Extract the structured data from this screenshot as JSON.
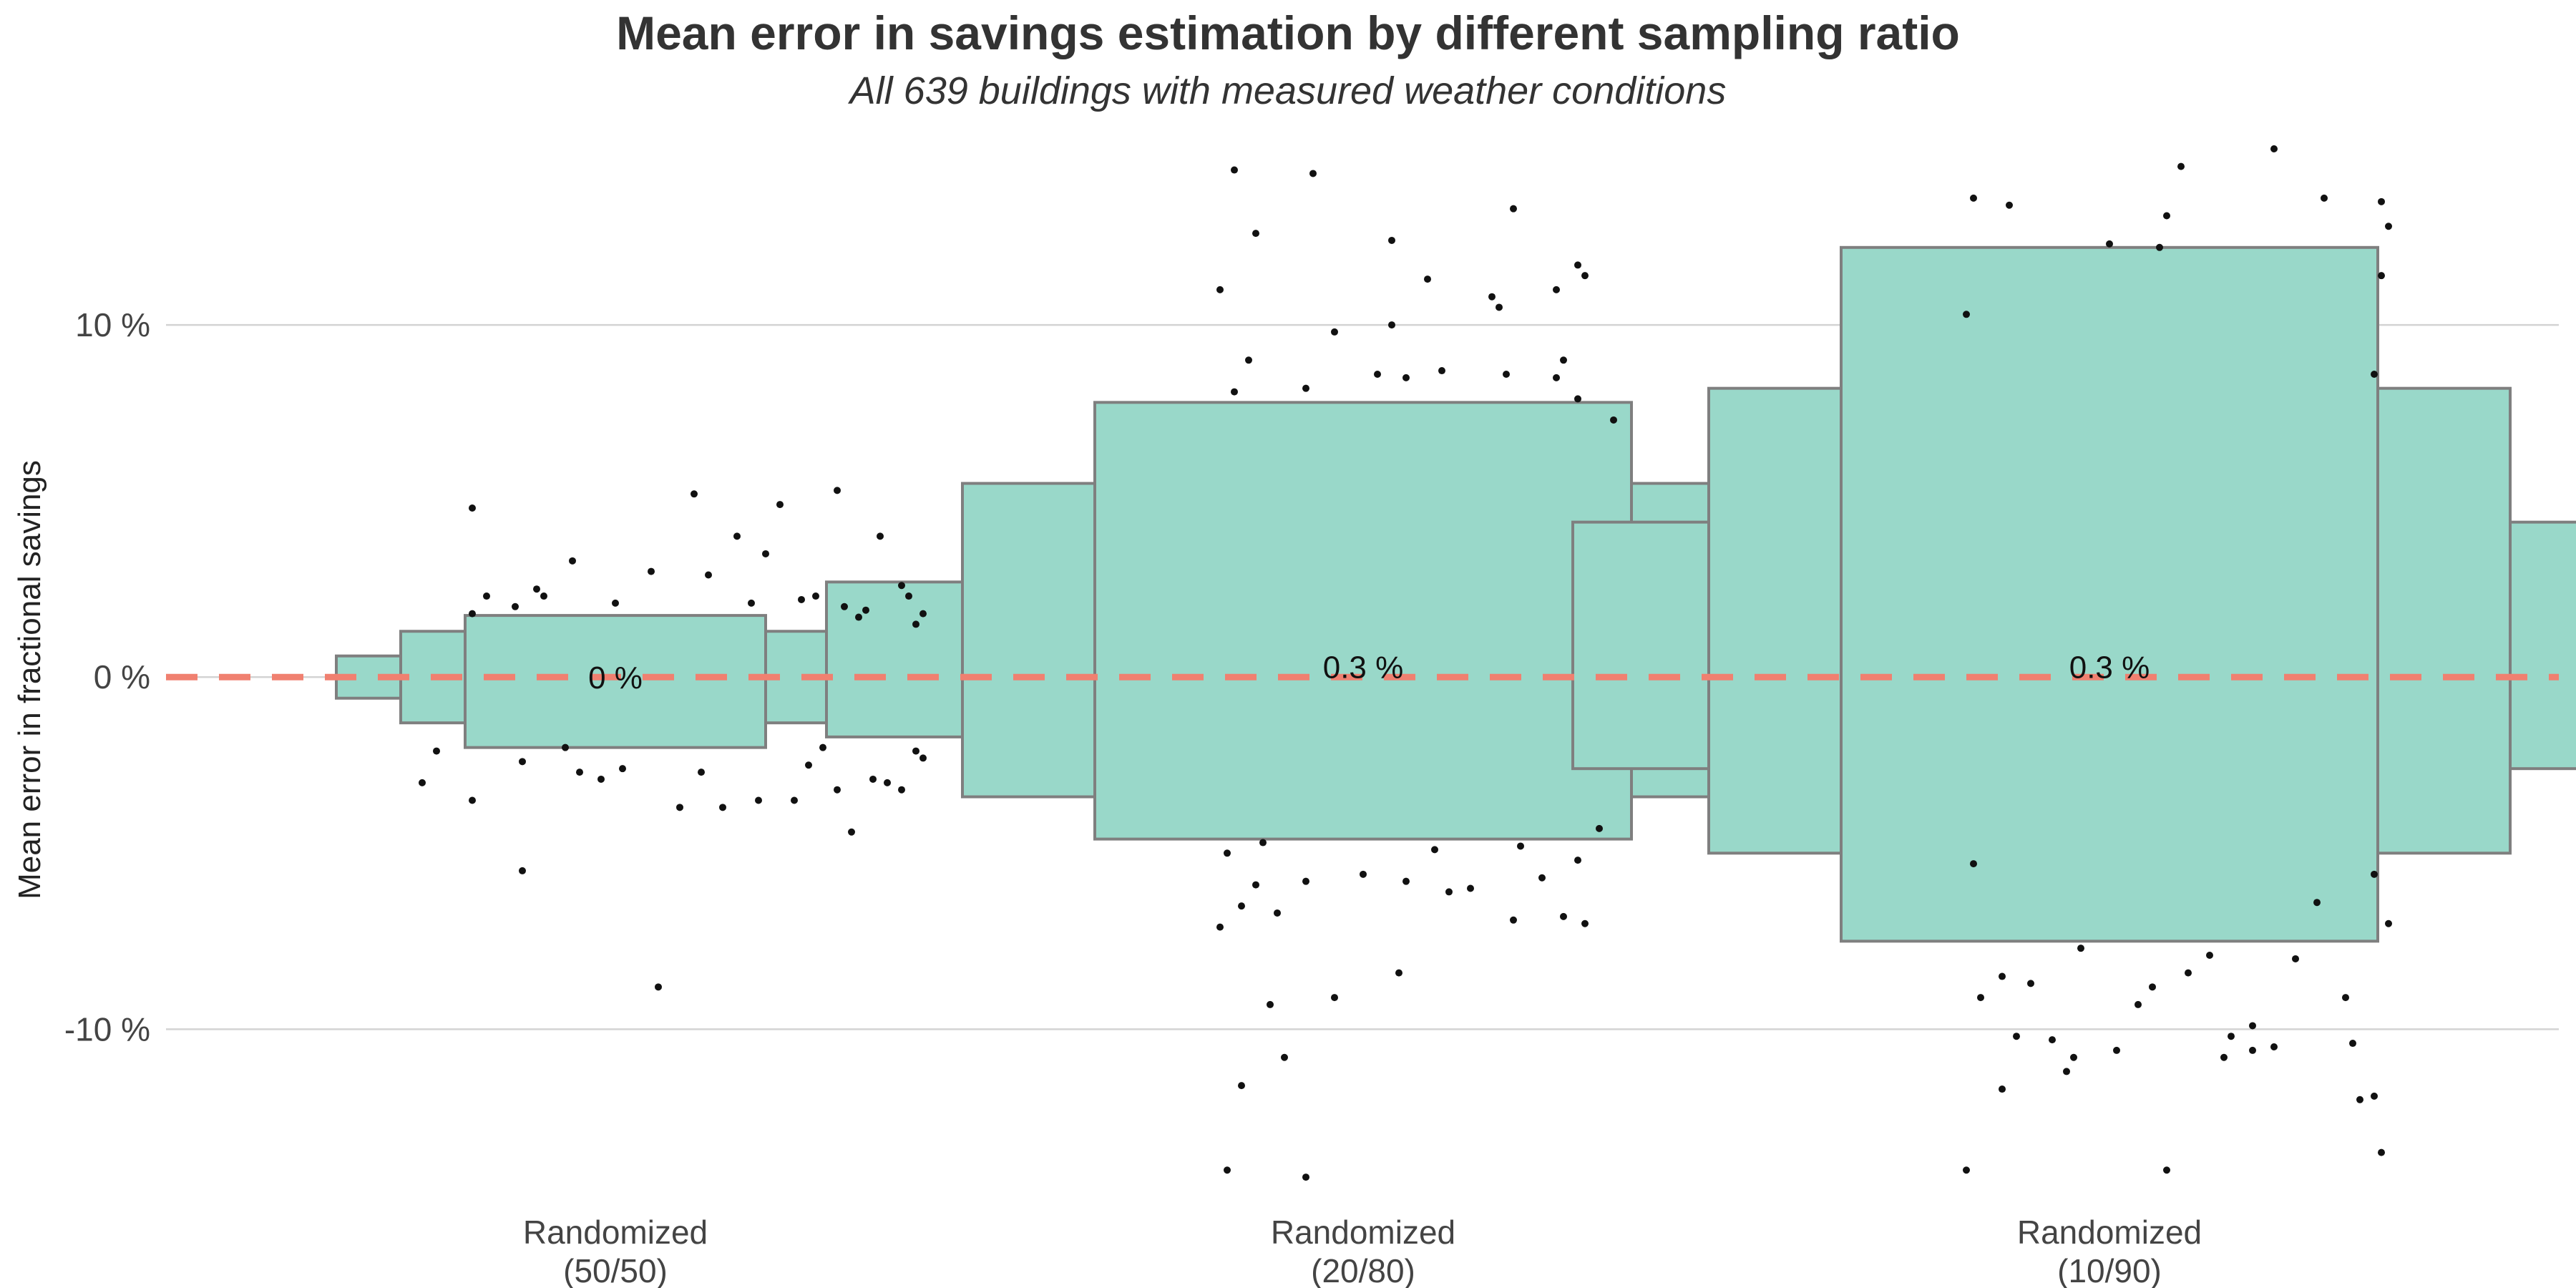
{
  "chart_data": {
    "type": "letter-value-plot",
    "title": "Mean error in savings estimation by different sampling ratio",
    "subtitle": "All 639 buildings with measured weather conditions",
    "ylabel": "Mean error in fractional savings",
    "xlabel": "",
    "ylim": [
      -14.3,
      15
    ],
    "yticks": [
      {
        "value": 10,
        "label": "10 %"
      },
      {
        "value": 0,
        "label": "0 %"
      },
      {
        "value": -10,
        "label": "-10 %"
      }
    ],
    "reference_line": {
      "value": 0,
      "style": "dashed",
      "color": "#F08070"
    },
    "grid": true,
    "colors": {
      "box_fill": "#99D8C9",
      "box_stroke": "#7F7F7F",
      "points": "#111111",
      "grid": "#D3D3D3",
      "axis_text": "#444444"
    },
    "categories": [
      {
        "label_line1": "Randomized",
        "label_line2": "(50/50)",
        "median": 0.0,
        "median_label": "0 %",
        "boxes": [
          {
            "low": -0.6,
            "high": 0.6,
            "halfwidth": 0.39
          },
          {
            "low": -1.3,
            "high": 1.3,
            "halfwidth": 0.3
          },
          {
            "low": -2.0,
            "high": 1.75,
            "halfwidth": 0.21
          }
        ],
        "outliers": [
          [
            -0.2,
            4.8
          ],
          [
            0.11,
            5.2
          ],
          [
            0.31,
            5.3
          ],
          [
            0.23,
            4.9
          ],
          [
            0.17,
            4.0
          ],
          [
            0.13,
            2.9
          ],
          [
            0.37,
            4.0
          ],
          [
            -0.11,
            2.5
          ],
          [
            -0.1,
            2.3
          ],
          [
            0.0,
            2.1
          ],
          [
            0.19,
            2.1
          ],
          [
            0.26,
            2.2
          ],
          [
            0.32,
            2.0
          ],
          [
            0.4,
            2.6
          ],
          [
            -0.18,
            2.3
          ],
          [
            0.05,
            3.0
          ],
          [
            -0.14,
            2.0
          ],
          [
            0.41,
            2.3
          ],
          [
            0.35,
            1.9
          ],
          [
            0.21,
            3.5
          ],
          [
            0.42,
            1.5
          ],
          [
            0.43,
            1.8
          ],
          [
            -0.2,
            1.8
          ],
          [
            0.28,
            2.3
          ],
          [
            -0.06,
            3.3
          ],
          [
            0.34,
            1.7
          ],
          [
            -0.25,
            -2.1
          ],
          [
            -0.27,
            -3.0
          ],
          [
            -0.13,
            -2.4
          ],
          [
            -0.05,
            -2.7
          ],
          [
            0.01,
            -2.6
          ],
          [
            0.12,
            -2.7
          ],
          [
            0.36,
            -2.9
          ],
          [
            0.42,
            -2.1
          ],
          [
            -0.13,
            -5.5
          ],
          [
            0.2,
            -3.5
          ],
          [
            0.25,
            -3.5
          ],
          [
            0.27,
            -2.5
          ],
          [
            0.4,
            -3.2
          ],
          [
            0.43,
            -2.3
          ],
          [
            0.15,
            -3.7
          ],
          [
            0.09,
            -3.7
          ],
          [
            0.33,
            -4.4
          ],
          [
            0.06,
            -8.8
          ],
          [
            -0.07,
            -2.0
          ],
          [
            -0.02,
            -2.9
          ],
          [
            0.29,
            -2.0
          ],
          [
            0.31,
            -3.2
          ],
          [
            -0.2,
            -3.5
          ],
          [
            0.38,
            -3.0
          ]
        ]
      },
      {
        "label_line1": "Randomized",
        "label_line2": "(20/80)",
        "median": 0.3,
        "median_label": "0.3 %",
        "boxes": [
          {
            "low": -1.7,
            "high": 2.7,
            "halfwidth": 0.75
          },
          {
            "low": -3.4,
            "high": 5.5,
            "halfwidth": 0.56
          },
          {
            "low": -4.6,
            "high": 7.8,
            "halfwidth": 0.375
          }
        ],
        "outliers": [
          [
            -0.18,
            14.4
          ],
          [
            -0.07,
            14.3
          ],
          [
            0.04,
            12.4
          ],
          [
            -0.15,
            12.6
          ],
          [
            0.09,
            11.3
          ],
          [
            0.21,
            13.3
          ],
          [
            0.18,
            10.8
          ],
          [
            0.27,
            11.0
          ],
          [
            0.19,
            10.5
          ],
          [
            0.3,
            11.7
          ],
          [
            -0.2,
            11.0
          ],
          [
            0.31,
            11.4
          ],
          [
            -0.04,
            9.8
          ],
          [
            0.04,
            10.0
          ],
          [
            -0.16,
            9.0
          ],
          [
            0.11,
            8.7
          ],
          [
            0.2,
            8.6
          ],
          [
            0.28,
            9.0
          ],
          [
            0.27,
            8.5
          ],
          [
            -0.18,
            8.1
          ],
          [
            -0.08,
            8.2
          ],
          [
            0.06,
            8.5
          ],
          [
            0.3,
            7.9
          ],
          [
            0.35,
            7.3
          ],
          [
            0.02,
            8.6
          ],
          [
            -0.19,
            -5.0
          ],
          [
            -0.17,
            -6.5
          ],
          [
            -0.12,
            -6.7
          ],
          [
            -0.08,
            -5.8
          ],
          [
            0.0,
            -5.6
          ],
          [
            0.06,
            -5.8
          ],
          [
            0.15,
            -6.0
          ],
          [
            0.21,
            -6.9
          ],
          [
            0.28,
            -6.8
          ],
          [
            -0.2,
            -7.1
          ],
          [
            0.31,
            -7.0
          ],
          [
            0.05,
            -8.4
          ],
          [
            -0.04,
            -9.1
          ],
          [
            -0.13,
            -9.3
          ],
          [
            -0.17,
            -11.6
          ],
          [
            -0.11,
            -10.8
          ],
          [
            -0.19,
            -14.0
          ],
          [
            -0.08,
            -14.2
          ],
          [
            0.33,
            -4.3
          ],
          [
            0.3,
            -5.2
          ],
          [
            0.1,
            -4.9
          ],
          [
            -0.14,
            -4.7
          ],
          [
            0.22,
            -4.8
          ],
          [
            0.12,
            -6.1
          ],
          [
            -0.15,
            -5.9
          ],
          [
            0.25,
            -5.7
          ]
        ]
      },
      {
        "label_line1": "Randomized",
        "label_line2": "(10/90)",
        "median": 0.3,
        "median_label": "0.3 %",
        "boxes": [
          {
            "low": -2.6,
            "high": 4.4,
            "halfwidth": 0.75
          },
          {
            "low": -5.0,
            "high": 8.2,
            "halfwidth": 0.56
          },
          {
            "low": -7.5,
            "high": 12.2,
            "halfwidth": 0.375
          }
        ],
        "outliers": [
          [
            -0.19,
            13.6
          ],
          [
            -0.14,
            13.4
          ],
          [
            0.1,
            14.5
          ],
          [
            0.23,
            15.0
          ],
          [
            0.3,
            13.6
          ],
          [
            0.38,
            13.5
          ],
          [
            0.39,
            12.8
          ],
          [
            -0.2,
            10.3
          ],
          [
            0.07,
            12.2
          ],
          [
            0.0,
            12.3
          ],
          [
            0.08,
            13.1
          ],
          [
            0.38,
            11.4
          ],
          [
            0.37,
            8.6
          ],
          [
            -0.19,
            -5.3
          ],
          [
            -0.18,
            -9.1
          ],
          [
            -0.15,
            -8.5
          ],
          [
            -0.13,
            -10.2
          ],
          [
            -0.08,
            -10.3
          ],
          [
            -0.05,
            -10.8
          ],
          [
            0.01,
            -10.6
          ],
          [
            0.06,
            -8.8
          ],
          [
            0.11,
            -8.4
          ],
          [
            0.17,
            -10.2
          ],
          [
            0.2,
            -10.6
          ],
          [
            0.23,
            -10.5
          ],
          [
            0.33,
            -9.1
          ],
          [
            0.34,
            -10.4
          ],
          [
            -0.15,
            -11.7
          ],
          [
            0.37,
            -11.9
          ],
          [
            -0.2,
            -14.0
          ],
          [
            0.08,
            -14.0
          ],
          [
            0.38,
            -13.5
          ],
          [
            0.39,
            -7.0
          ],
          [
            0.37,
            -5.6
          ],
          [
            -0.11,
            -8.7
          ],
          [
            0.14,
            -7.9
          ],
          [
            0.26,
            -8.0
          ],
          [
            -0.04,
            -7.7
          ],
          [
            0.29,
            -6.4
          ],
          [
            0.2,
            -9.9
          ],
          [
            0.35,
            -12.0
          ],
          [
            0.04,
            -9.3
          ],
          [
            -0.06,
            -11.2
          ],
          [
            0.16,
            -10.8
          ]
        ]
      }
    ]
  }
}
